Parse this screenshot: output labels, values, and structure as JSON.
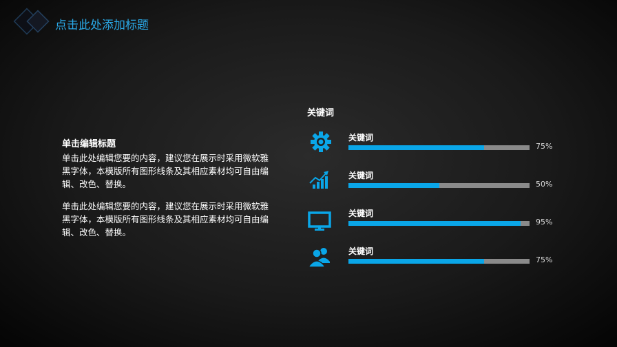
{
  "header": {
    "title": "点击此处添加标题"
  },
  "left": {
    "heading": "单击编辑标题",
    "paragraphs": [
      "单击此处编辑您要的内容，建议您在展示时采用微软雅黑字体，本模版所有图形线条及其相应素材均可自由编辑、改色、替换。",
      "单击此处编辑您要的内容，建议您在展示时采用微软雅黑字体，本模版所有图形线条及其相应素材均可自由编辑、改色、替换。"
    ]
  },
  "right": {
    "heading": "关键词",
    "items": [
      {
        "icon": "gear-icon",
        "label": "关键词",
        "value": 75,
        "percent_label": "75%"
      },
      {
        "icon": "growth-chart-icon",
        "label": "关键词",
        "value": 50,
        "percent_label": "50%"
      },
      {
        "icon": "monitor-icon",
        "label": "关键词",
        "value": 95,
        "percent_label": "95%"
      },
      {
        "icon": "users-icon",
        "label": "关键词",
        "value": 75,
        "percent_label": "75%"
      }
    ]
  },
  "colors": {
    "accent": "#0aa6e8",
    "track": "#8a8a8a",
    "title": "#2aa8e6"
  }
}
